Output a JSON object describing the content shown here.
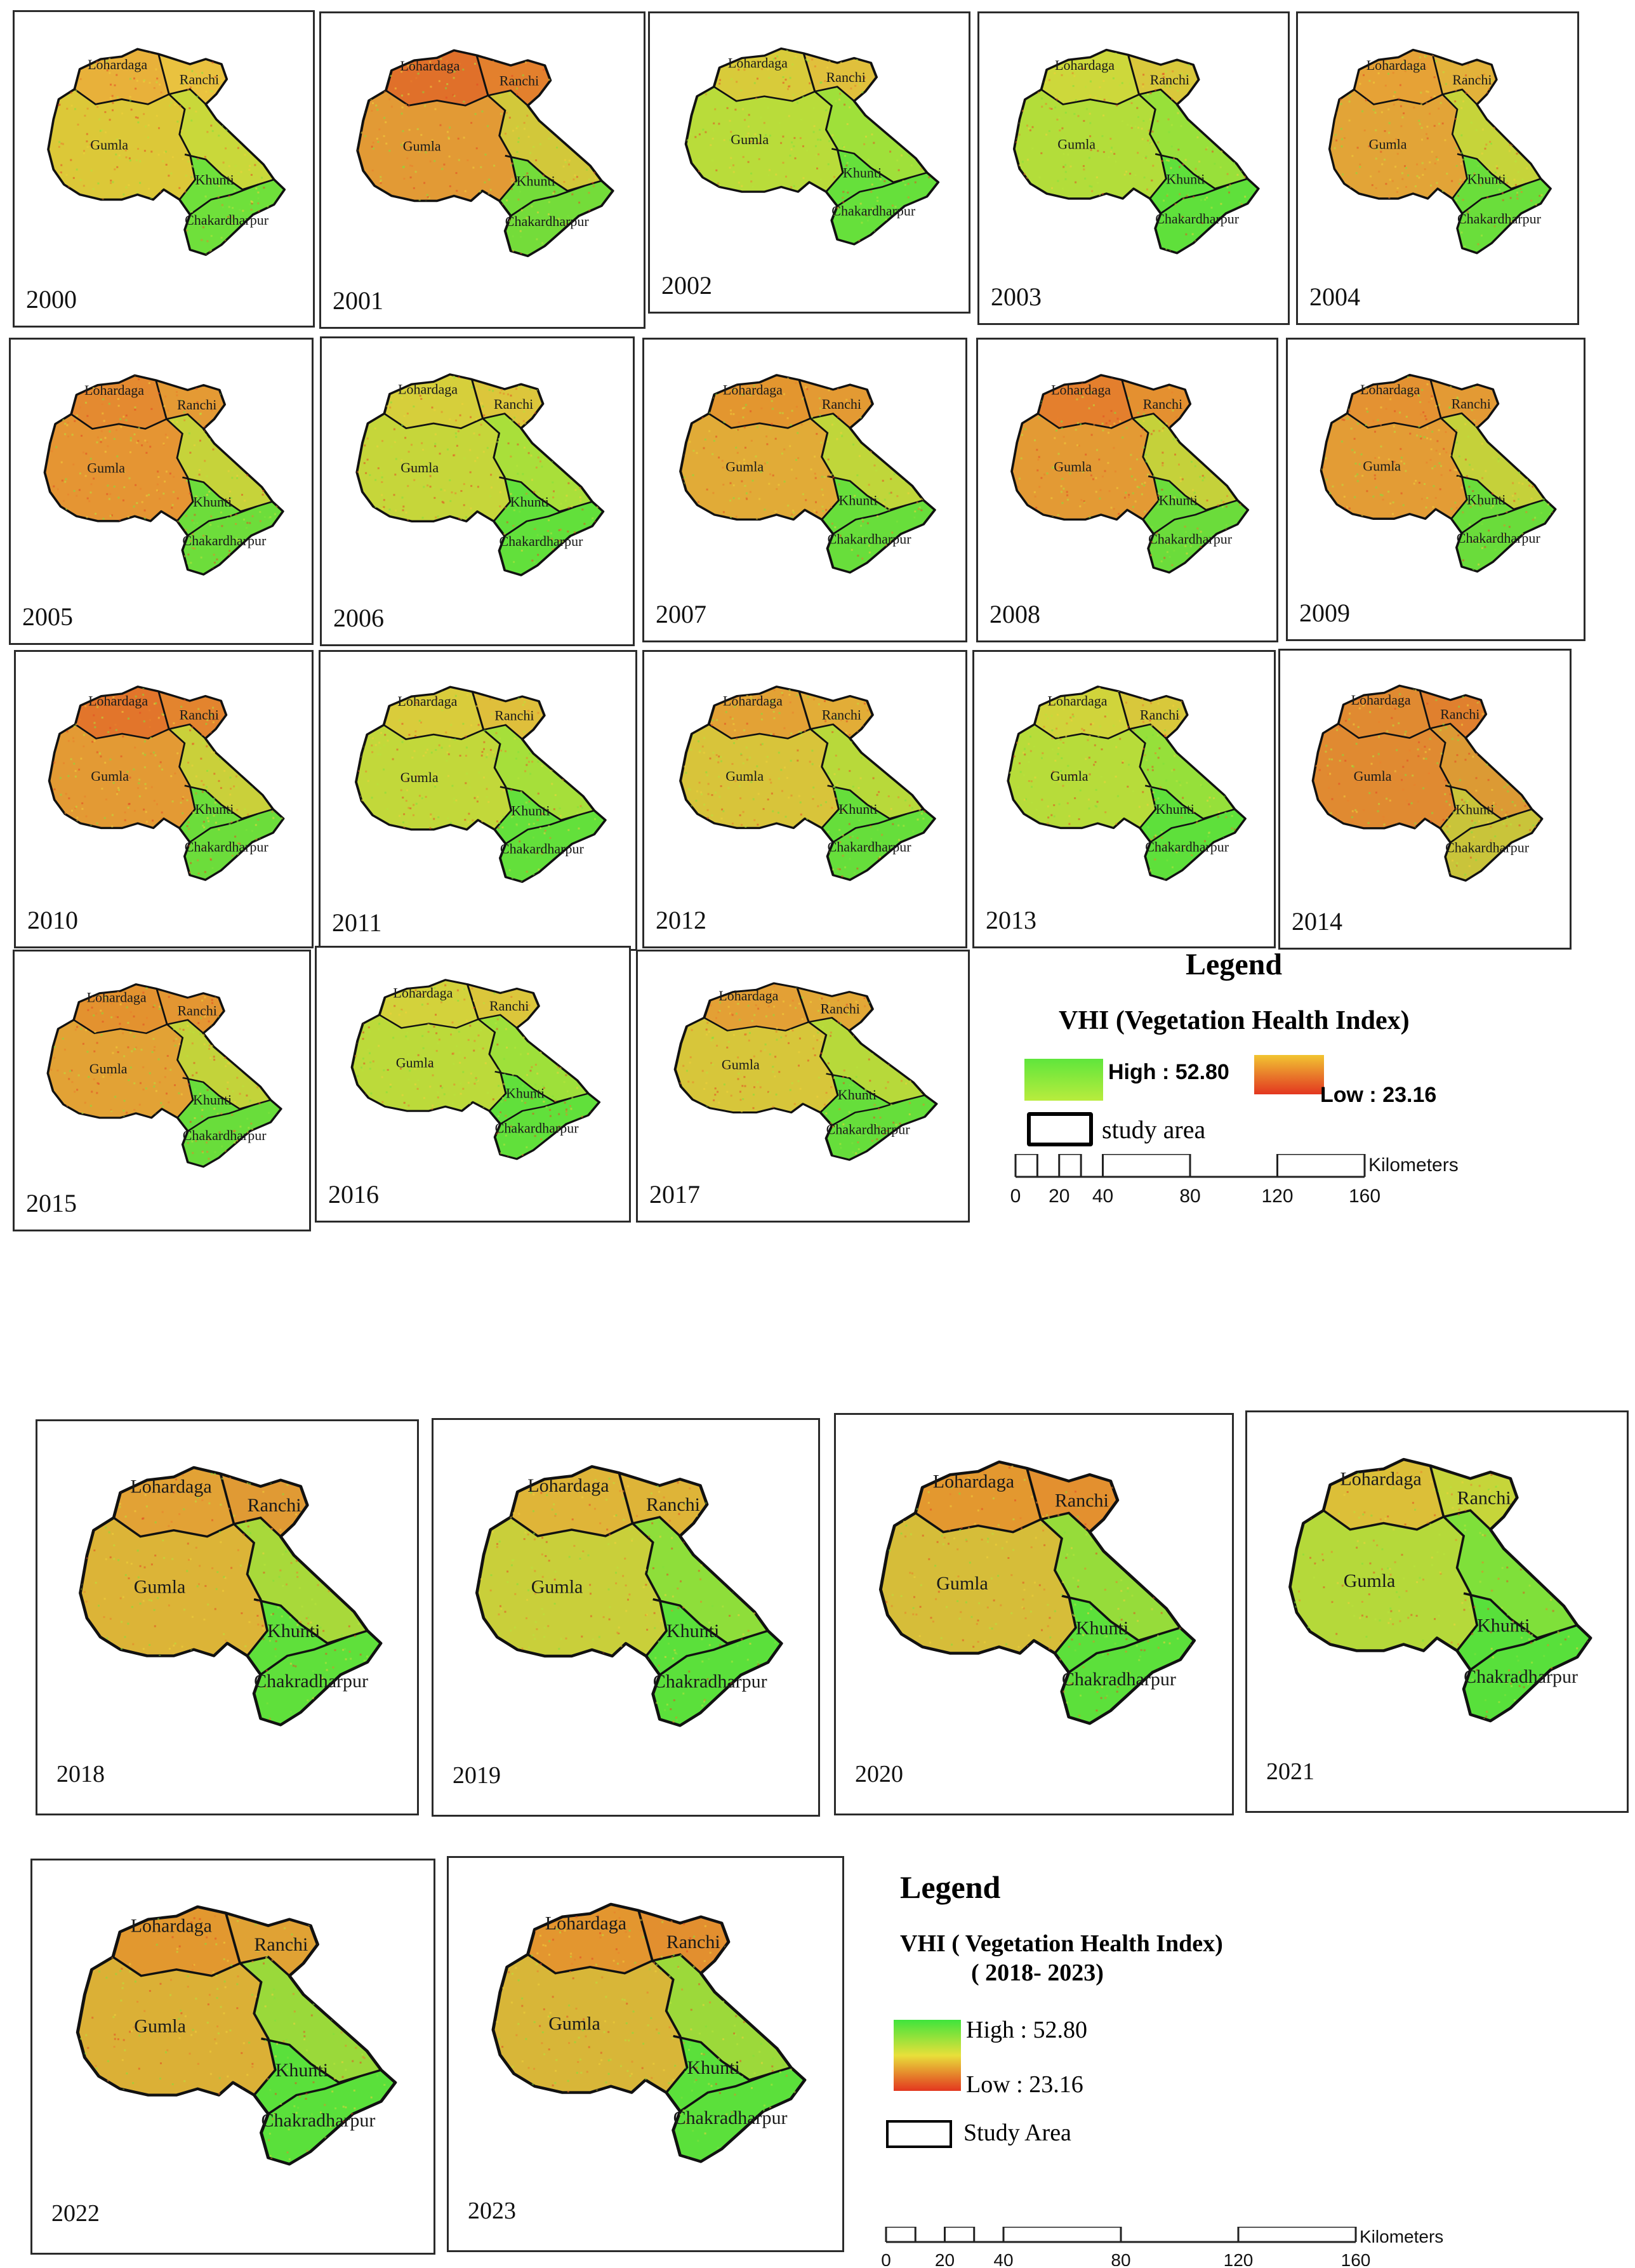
{
  "figure_top": {
    "maps": [
      {
        "year": "2000",
        "labels": {
          "lohardaga": "Lohardaga",
          "ranchi": "Ranchi",
          "gumla": "Gumla",
          "khunti": "Khunti",
          "chakradharpur": "Chakardharpur"
        },
        "colors": {
          "nw": "#e8b13a",
          "ne": "#e9c23f",
          "w": "#dcc838",
          "mid": "#c9d83a",
          "se": "#6fe03b"
        }
      },
      {
        "year": "2001",
        "labels": {
          "lohardaga": "Lohardaga",
          "ranchi": "Ranchi",
          "gumla": "Gumla",
          "khunti": "Khunti",
          "chakradharpur": "Chakardharpur"
        },
        "colors": {
          "nw": "#e0702a",
          "ne": "#e3802d",
          "w": "#e29a35",
          "mid": "#d2c83a",
          "se": "#74dc3a"
        }
      },
      {
        "year": "2002",
        "labels": {
          "lohardaga": "Lohardaga",
          "ranchi": "Ranchi",
          "gumla": "Gumla",
          "khunti": "Khunti",
          "chakradharpur": "Chakardharpur"
        },
        "colors": {
          "nw": "#d8cb3a",
          "ne": "#e0c03c",
          "w": "#b9dc3a",
          "mid": "#9fe03a",
          "se": "#66e03b"
        }
      },
      {
        "year": "2003",
        "labels": {
          "lohardaga": "Lohardaga",
          "ranchi": "Ranchi",
          "gumla": "Gumla",
          "khunti": "Khunti",
          "chakradharpur": "Chakardharpur"
        },
        "colors": {
          "nw": "#cdd83b",
          "ne": "#d9c83b",
          "w": "#b3dd3a",
          "mid": "#98e03a",
          "se": "#5fe03b"
        }
      },
      {
        "year": "2004",
        "labels": {
          "lohardaga": "Lohardaga",
          "ranchi": "Ranchi",
          "gumla": "Gumla",
          "khunti": "Khunti",
          "chakradharpur": "Chakardharpur"
        },
        "colors": {
          "nw": "#e6a236",
          "ne": "#e2b23a",
          "w": "#e2a437",
          "mid": "#c6d43a",
          "se": "#6ade3b"
        }
      },
      {
        "year": "2005",
        "labels": {
          "lohardaga": "Lohardaga",
          "ranchi": "Ranchi",
          "gumla": "Gumla",
          "khunti": "Khunti",
          "chakradharpur": "Chakardharpur"
        },
        "colors": {
          "nw": "#e48a30",
          "ne": "#e49a34",
          "w": "#e59533",
          "mid": "#c6d33a",
          "se": "#6ddd3b"
        }
      },
      {
        "year": "2006",
        "labels": {
          "lohardaga": "Lohardaga",
          "ranchi": "Ranchi",
          "gumla": "Gumla",
          "khunti": "Khunti",
          "chakradharpur": "Chakardharpur"
        },
        "colors": {
          "nw": "#d6cf3b",
          "ne": "#dcc63b",
          "w": "#c6d63a",
          "mid": "#a9df3a",
          "se": "#62e03b"
        }
      },
      {
        "year": "2007",
        "labels": {
          "lohardaga": "Lohardaga",
          "ranchi": "Ranchi",
          "gumla": "Gumla",
          "khunti": "Khunti",
          "chakradharpur": "Chakardharpur"
        },
        "colors": {
          "nw": "#e3962f",
          "ne": "#e39a33",
          "w": "#e1ab37",
          "mid": "#c0d63a",
          "se": "#68de3b"
        }
      },
      {
        "year": "2008",
        "labels": {
          "lohardaga": "Lohardaga",
          "ranchi": "Ranchi",
          "gumla": "Gumla",
          "khunti": "Khunti",
          "chakradharpur": "Chakardharpur"
        },
        "colors": {
          "nw": "#e47f2d",
          "ne": "#e49030",
          "w": "#e39a34",
          "mid": "#c5d13a",
          "se": "#6bdc3b"
        }
      },
      {
        "year": "2009",
        "labels": {
          "lohardaga": "Lohardaga",
          "ranchi": "Ranchi",
          "gumla": "Gumla",
          "khunti": "Khunti",
          "chakradharpur": "Chakardharpur"
        },
        "colors": {
          "nw": "#e49232",
          "ne": "#e39a34",
          "w": "#e39c35",
          "mid": "#c5d13a",
          "se": "#6adc3b"
        }
      },
      {
        "year": "2010",
        "labels": {
          "lohardaga": "Lohardaga",
          "ranchi": "Ranchi",
          "gumla": "Gumla",
          "khunti": "Khunti",
          "chakradharpur": "Chakardharpur"
        },
        "colors": {
          "nw": "#e2752b",
          "ne": "#e3842e",
          "w": "#e39a34",
          "mid": "#cad03a",
          "se": "#6cdd3b"
        }
      },
      {
        "year": "2011",
        "labels": {
          "lohardaga": "Lohardaga",
          "ranchi": "Ranchi",
          "gumla": "Gumla",
          "khunti": "Khunti",
          "chakradharpur": "Chakardharpur"
        },
        "colors": {
          "nw": "#d9cc3b",
          "ne": "#dfbf3b",
          "w": "#c2d83a",
          "mid": "#a6df3a",
          "se": "#63e03b"
        }
      },
      {
        "year": "2012",
        "labels": {
          "lohardaga": "Lohardaga",
          "ranchi": "Ranchi",
          "gumla": "Gumla",
          "khunti": "Khunti",
          "chakradharpur": "Chakardharpur"
        },
        "colors": {
          "nw": "#e3a235",
          "ne": "#e2ad37",
          "w": "#d8c43a",
          "mid": "#b8d93a",
          "se": "#66de3b"
        }
      },
      {
        "year": "2013",
        "labels": {
          "lohardaga": "Lohardaga",
          "ranchi": "Ranchi",
          "gumla": "Gumla",
          "khunti": "Khunti",
          "chakradharpur": "Chakardharpur"
        },
        "colors": {
          "nw": "#d0d43b",
          "ne": "#d8c83b",
          "w": "#b7dc3a",
          "mid": "#96e03a",
          "se": "#5ee03b"
        }
      },
      {
        "year": "2014",
        "labels": {
          "lohardaga": "Lohardaga",
          "ranchi": "Ranchi",
          "gumla": "Gumla",
          "khunti": "Khunti",
          "chakradharpur": "Chakardharpur"
        },
        "colors": {
          "nw": "#e08a31",
          "ne": "#e0802e",
          "w": "#e08a31",
          "mid": "#dc9a34",
          "se": "#c9c43a"
        }
      },
      {
        "year": "2015",
        "labels": {
          "lohardaga": "Lohardaga",
          "ranchi": "Ranchi",
          "gumla": "Gumla",
          "khunti": "Khunti",
          "chakradharpur": "Chakardharpur"
        },
        "colors": {
          "nw": "#e3922f",
          "ne": "#e39632",
          "w": "#e2a235",
          "mid": "#c3d33a",
          "se": "#69dd3b"
        }
      },
      {
        "year": "2016",
        "labels": {
          "lohardaga": "Lohardaga",
          "ranchi": "Ranchi",
          "gumla": "Gumla",
          "khunti": "Khunti",
          "chakradharpur": "Chakardharpur"
        },
        "colors": {
          "nw": "#d3d23b",
          "ne": "#dbc63b",
          "w": "#bcda3a",
          "mid": "#9ee03a",
          "se": "#61e03b"
        }
      },
      {
        "year": "2017",
        "labels": {
          "lohardaga": "Lohardaga",
          "ranchi": "Ranchi",
          "gumla": "Gumla",
          "khunti": "Khunti",
          "chakradharpur": "Chakardharpur"
        },
        "colors": {
          "nw": "#e3a035",
          "ne": "#e2a836",
          "w": "#d7c63a",
          "mid": "#b7d93a",
          "se": "#66de3b"
        }
      }
    ],
    "legend": {
      "title": "Legend",
      "subtitle": "VHI (Vegetation Health Index)",
      "high": "High : 52.80",
      "low": "Low : 23.16",
      "study_area": "study area",
      "scale_ticks": [
        "0",
        "20",
        "40",
        "80",
        "120",
        "160"
      ],
      "scale_unit": "Kilometers",
      "ramp_colors": {
        "green": "#5fe63c",
        "yellow": "#e8e03a",
        "red": "#e3361f"
      }
    }
  },
  "figure_bottom": {
    "maps": [
      {
        "year": "2018",
        "labels": {
          "lohardaga": "Lohardaga",
          "ranchi": "Ranchi",
          "gumla": "Gumla",
          "khunti": "Khunti",
          "chakradharpur": "Chakradharpur"
        },
        "colors": {
          "nw": "#e2a235",
          "ne": "#e09a34",
          "w": "#dcb437",
          "mid": "#a8d93a",
          "se": "#5fe03b"
        }
      },
      {
        "year": "2019",
        "labels": {
          "lohardaga": "Lohardaga",
          "ranchi": "Ranchi",
          "gumla": "Gumla",
          "khunti": "Khunti",
          "chakradharpur": "Chakradharpur"
        },
        "colors": {
          "nw": "#dfb538",
          "ne": "#deb438",
          "w": "#c9cf3a",
          "mid": "#8ede3a",
          "se": "#5be03b"
        }
      },
      {
        "year": "2020",
        "labels": {
          "lohardaga": "Lohardaga",
          "ranchi": "Ranchi",
          "gumla": "Gumla",
          "khunti": "Khunti",
          "chakradharpur": "Chakradharpur"
        },
        "colors": {
          "nw": "#e3982f",
          "ne": "#e3902f",
          "w": "#d6bd39",
          "mid": "#96dc3a",
          "se": "#5ce03b"
        }
      },
      {
        "year": "2021",
        "labels": {
          "lohardaga": "Lohardaga",
          "ranchi": "Ranchi",
          "gumla": "Gumla",
          "khunti": "Khunti",
          "chakradharpur": "Chakradharpur"
        },
        "colors": {
          "nw": "#dcbf38",
          "ne": "#c6d53a",
          "w": "#b5d93a",
          "mid": "#7fe03a",
          "se": "#58e03b"
        }
      },
      {
        "year": "2022",
        "labels": {
          "lohardaga": "Lohardaga",
          "ranchi": "Ranchi",
          "gumla": "Gumla",
          "khunti": "Khunti",
          "chakradharpur": "Chakradharpur"
        },
        "colors": {
          "nw": "#e2982f",
          "ne": "#e0a234",
          "w": "#dbb036",
          "mid": "#9ad93a",
          "se": "#5ae03b"
        }
      },
      {
        "year": "2023",
        "labels": {
          "lohardaga": "Lohardaga",
          "ranchi": "Ranchi",
          "gumla": "Gumla",
          "khunti": "Khunti",
          "chakradharpur": "Chakradharpur"
        },
        "colors": {
          "nw": "#e3962f",
          "ne": "#e28f2f",
          "w": "#d8b638",
          "mid": "#9cd93a",
          "se": "#5be03b"
        }
      }
    ],
    "legend": {
      "title": "Legend",
      "subtitle": "VHI ( Vegetation Health Index)",
      "period": "( 2018- 2023)",
      "high": "High : 52.80",
      "low": "Low : 23.16",
      "study_area": "Study Area",
      "scale_ticks": [
        "0",
        "20",
        "40",
        "80",
        "120",
        "160"
      ],
      "scale_unit": "Kilometers",
      "ramp_colors": {
        "green": "#3fe43c",
        "yellow": "#e8e03a",
        "red": "#e3361f"
      }
    }
  }
}
